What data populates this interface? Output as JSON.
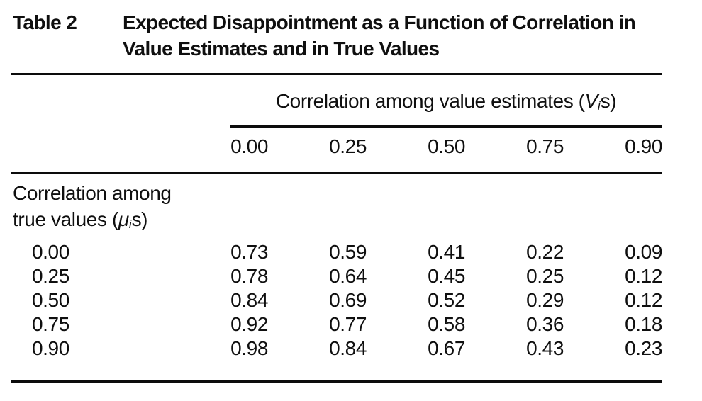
{
  "table_label": "Table 2",
  "title_lines": [
    "Expected Disappointment as a Function of Correlation in",
    "Value Estimates and in True Values"
  ],
  "col_group": {
    "prefix": "Correlation among value estimates (",
    "symbol": "V",
    "subscript": "i",
    "suffix": "s)"
  },
  "columns": [
    "0.00",
    "0.25",
    "0.50",
    "0.75",
    "0.90"
  ],
  "row_group": {
    "line1": "Correlation among",
    "line2_prefix": "true values (",
    "symbol": "μ",
    "subscript": "i",
    "suffix": "s)"
  },
  "rows": [
    {
      "label": "0.00",
      "values": [
        "0.73",
        "0.59",
        "0.41",
        "0.22",
        "0.09"
      ]
    },
    {
      "label": "0.25",
      "values": [
        "0.78",
        "0.64",
        "0.45",
        "0.25",
        "0.12"
      ]
    },
    {
      "label": "0.50",
      "values": [
        "0.84",
        "0.69",
        "0.52",
        "0.29",
        "0.12"
      ]
    },
    {
      "label": "0.75",
      "values": [
        "0.92",
        "0.77",
        "0.58",
        "0.36",
        "0.18"
      ]
    },
    {
      "label": "0.90",
      "values": [
        "0.98",
        "0.84",
        "0.67",
        "0.43",
        "0.23"
      ]
    }
  ],
  "colors": {
    "text": "#0f0f0f",
    "rule": "#0c0c0c",
    "background": "#ffffff"
  },
  "chart_data": {
    "type": "table",
    "title": "Table 2. Expected Disappointment as a Function of Correlation in Value Estimates and in True Values",
    "column_group_label": "Correlation among value estimates (Vis)",
    "row_group_label": "Correlation among true values (μis)",
    "columns": [
      0.0,
      0.25,
      0.5,
      0.75,
      0.9
    ],
    "row_labels": [
      0.0,
      0.25,
      0.5,
      0.75,
      0.9
    ],
    "values": [
      [
        0.73,
        0.59,
        0.41,
        0.22,
        0.09
      ],
      [
        0.78,
        0.64,
        0.45,
        0.25,
        0.12
      ],
      [
        0.84,
        0.69,
        0.52,
        0.29,
        0.12
      ],
      [
        0.92,
        0.77,
        0.58,
        0.36,
        0.18
      ],
      [
        0.98,
        0.84,
        0.67,
        0.43,
        0.23
      ]
    ]
  }
}
